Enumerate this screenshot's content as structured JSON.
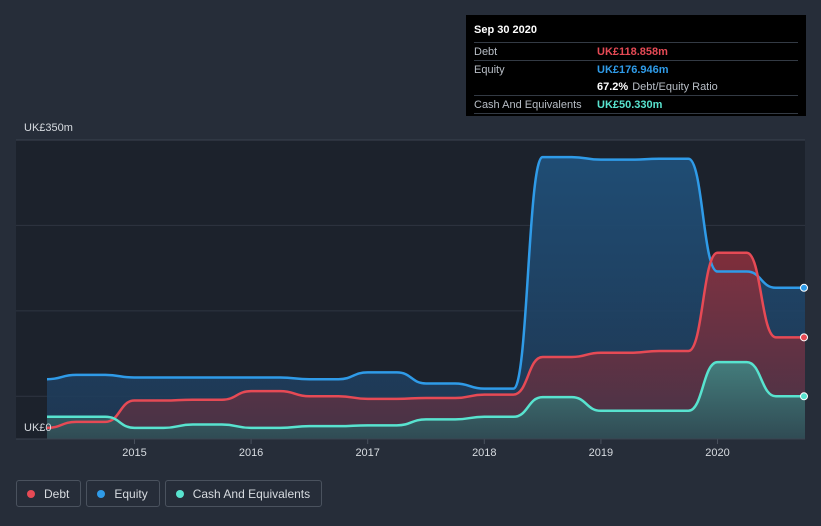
{
  "tooltip": {
    "date": "Sep 30 2020",
    "debt_label": "Debt",
    "debt_value": "UK£118.858m",
    "equity_label": "Equity",
    "equity_value": "UK£176.946m",
    "ratio_value": "67.2%",
    "ratio_label": "Debt/Equity Ratio",
    "cash_label": "Cash And Equivalents",
    "cash_value": "UK£50.330m"
  },
  "legend": {
    "debt": "Debt",
    "equity": "Equity",
    "cash": "Cash And Equivalents"
  },
  "colors": {
    "debt": "#e64a55",
    "equity": "#2f9be8",
    "cash": "#58e3cf",
    "background": "#262d39",
    "plot": "#1c222c"
  },
  "chart_data": {
    "type": "area",
    "ytick_top": "UK£350m",
    "ytick_bottom": "UK£0",
    "ylim": [
      0,
      350
    ],
    "xlim": [
      2014.25,
      2020.75
    ],
    "xticks": [
      "2015",
      "2016",
      "2017",
      "2018",
      "2019",
      "2020"
    ],
    "series": [
      {
        "name": "Debt",
        "points": [
          [
            2014.25,
            13
          ],
          [
            2014.5,
            20
          ],
          [
            2014.75,
            20
          ],
          [
            2015.0,
            45
          ],
          [
            2015.25,
            45
          ],
          [
            2015.5,
            46
          ],
          [
            2015.75,
            46
          ],
          [
            2016.0,
            56
          ],
          [
            2016.25,
            56
          ],
          [
            2016.5,
            50
          ],
          [
            2016.75,
            50
          ],
          [
            2017.0,
            47
          ],
          [
            2017.25,
            47
          ],
          [
            2017.5,
            48
          ],
          [
            2017.75,
            48
          ],
          [
            2018.0,
            52
          ],
          [
            2018.25,
            52
          ],
          [
            2018.5,
            96
          ],
          [
            2018.75,
            96
          ],
          [
            2019.0,
            101
          ],
          [
            2019.25,
            101
          ],
          [
            2019.5,
            103
          ],
          [
            2019.75,
            103
          ],
          [
            2020.0,
            218
          ],
          [
            2020.25,
            218
          ],
          [
            2020.5,
            119
          ],
          [
            2020.75,
            119
          ]
        ]
      },
      {
        "name": "Equity",
        "points": [
          [
            2014.25,
            70
          ],
          [
            2014.5,
            75
          ],
          [
            2014.75,
            75
          ],
          [
            2015.0,
            72
          ],
          [
            2015.25,
            72
          ],
          [
            2015.5,
            72
          ],
          [
            2015.75,
            72
          ],
          [
            2016.0,
            72
          ],
          [
            2016.25,
            72
          ],
          [
            2016.5,
            70
          ],
          [
            2016.75,
            70
          ],
          [
            2017.0,
            78
          ],
          [
            2017.25,
            78
          ],
          [
            2017.5,
            65
          ],
          [
            2017.75,
            65
          ],
          [
            2018.0,
            59
          ],
          [
            2018.25,
            59
          ],
          [
            2018.5,
            330
          ],
          [
            2018.75,
            330
          ],
          [
            2019.0,
            327
          ],
          [
            2019.25,
            327
          ],
          [
            2019.5,
            328
          ],
          [
            2019.75,
            328
          ],
          [
            2020.0,
            196
          ],
          [
            2020.25,
            196
          ],
          [
            2020.5,
            177
          ],
          [
            2020.75,
            177
          ]
        ]
      },
      {
        "name": "Cash And Equivalents",
        "points": [
          [
            2014.25,
            26
          ],
          [
            2014.5,
            26
          ],
          [
            2014.75,
            26
          ],
          [
            2015.0,
            13
          ],
          [
            2015.25,
            13
          ],
          [
            2015.5,
            17
          ],
          [
            2015.75,
            17
          ],
          [
            2016.0,
            13
          ],
          [
            2016.25,
            13
          ],
          [
            2016.5,
            15
          ],
          [
            2016.75,
            15
          ],
          [
            2017.0,
            16
          ],
          [
            2017.25,
            16
          ],
          [
            2017.5,
            23
          ],
          [
            2017.75,
            23
          ],
          [
            2018.0,
            26
          ],
          [
            2018.25,
            26
          ],
          [
            2018.5,
            49
          ],
          [
            2018.75,
            49
          ],
          [
            2019.0,
            33
          ],
          [
            2019.25,
            33
          ],
          [
            2019.5,
            33
          ],
          [
            2019.75,
            33
          ],
          [
            2020.0,
            90
          ],
          [
            2020.25,
            90
          ],
          [
            2020.5,
            50
          ],
          [
            2020.75,
            50
          ]
        ]
      }
    ],
    "grid": true,
    "legend_position": "bottom-left"
  }
}
